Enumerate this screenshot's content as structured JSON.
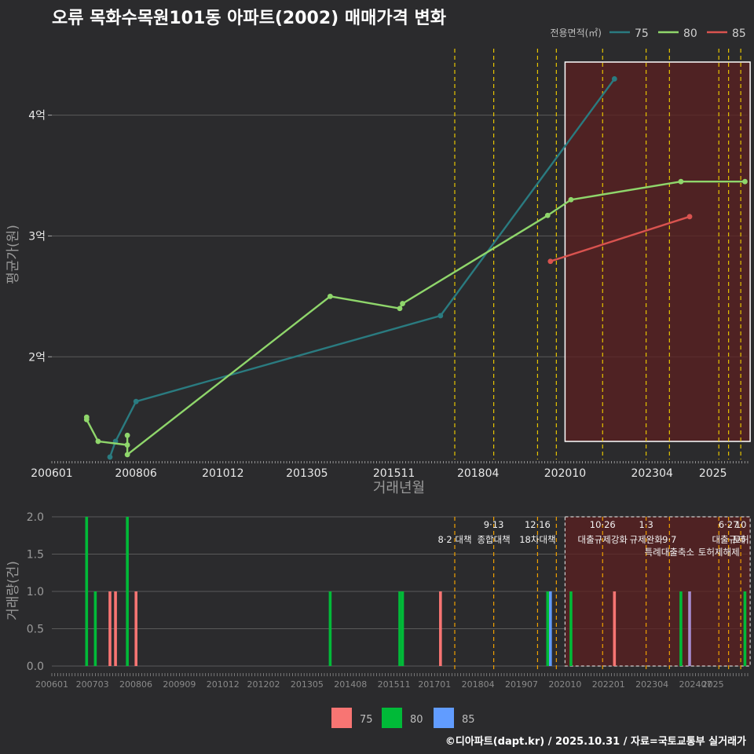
{
  "chart_data": {
    "title": "오류 목화수목원101동 아파트(2002) 매매가격 변화",
    "credit": "©디아파트(dapt.kr) / 2025.10.31 / 자료=국토교통부 실거래가",
    "legend_title": "전용면적(㎡)",
    "colors": {
      "75": "#2a7b80",
      "80": "#8fd66b",
      "85": "#d9534f",
      "bar75": "#f87573",
      "bar80": "#00ba38",
      "bar85": "#619cff",
      "bar_purple": "#a78bcf"
    },
    "top": {
      "type": "line",
      "xlabel": "거래년월",
      "ylabel": "평균가(원)",
      "ylim": [
        1.15,
        4.55
      ],
      "yticks": [
        {
          "v": 2,
          "label": "2억"
        },
        {
          "v": 3,
          "label": "3억"
        },
        {
          "v": 4,
          "label": "4억"
        }
      ],
      "xticks": [
        "200601",
        "200806",
        "201012",
        "201305",
        "201511",
        "201804",
        "202010",
        "202304",
        "2025"
      ],
      "series": [
        {
          "name": "75",
          "points": [
            [
              2007.67,
              1.17
            ],
            [
              2007.83,
              1.3
            ],
            [
              2008.42,
              1.63
            ],
            [
              2017.17,
              2.34
            ],
            [
              2022.17,
              4.3
            ]
          ]
        },
        {
          "name": "80",
          "points": [
            [
              2007.0,
              1.5
            ],
            [
              2007.0,
              1.48
            ],
            [
              2007.33,
              1.3
            ],
            [
              2008.17,
              1.27
            ],
            [
              2008.17,
              1.35
            ],
            [
              2008.17,
              1.19
            ],
            [
              2014.0,
              2.5
            ],
            [
              2016.0,
              2.4
            ],
            [
              2016.08,
              2.44
            ],
            [
              2020.25,
              3.17
            ],
            [
              2020.92,
              3.3
            ],
            [
              2024.08,
              3.45
            ],
            [
              2025.92,
              3.45
            ]
          ]
        },
        {
          "name": "85",
          "points": [
            [
              2020.33,
              2.79
            ],
            [
              2024.33,
              3.16
            ]
          ]
        }
      ]
    },
    "bottom": {
      "type": "bar",
      "ylabel": "거래량(건)",
      "ylim": [
        0,
        2
      ],
      "yticks": [
        "0.0",
        "0.5",
        "1.0",
        "1.5",
        "2.0"
      ],
      "xticks": [
        "200601",
        "200703",
        "200806",
        "200909",
        "201012",
        "201202",
        "201305",
        "201408",
        "201511",
        "201701",
        "201804",
        "201907",
        "202010",
        "202201",
        "202304",
        "202407",
        "2025"
      ],
      "bars": [
        {
          "t": 2007.0,
          "v": 2,
          "s": "bar80"
        },
        {
          "t": 2007.25,
          "v": 1,
          "s": "bar80"
        },
        {
          "t": 2007.67,
          "v": 1,
          "s": "bar75"
        },
        {
          "t": 2007.83,
          "v": 1,
          "s": "bar75"
        },
        {
          "t": 2008.17,
          "v": 2,
          "s": "bar80"
        },
        {
          "t": 2008.42,
          "v": 1,
          "s": "bar75"
        },
        {
          "t": 2014.0,
          "v": 1,
          "s": "bar80"
        },
        {
          "t": 2016.0,
          "v": 1,
          "s": "bar80"
        },
        {
          "t": 2016.08,
          "v": 1,
          "s": "bar80"
        },
        {
          "t": 2017.17,
          "v": 1,
          "s": "bar75"
        },
        {
          "t": 2020.25,
          "v": 1,
          "s": "bar80"
        },
        {
          "t": 2020.33,
          "v": 1,
          "s": "bar85"
        },
        {
          "t": 2020.92,
          "v": 1,
          "s": "bar80"
        },
        {
          "t": 2022.17,
          "v": 1,
          "s": "bar75"
        },
        {
          "t": 2024.08,
          "v": 1,
          "s": "bar80"
        },
        {
          "t": 2024.33,
          "v": 1,
          "s": "bar_purple"
        },
        {
          "t": 2025.92,
          "v": 1,
          "s": "bar80"
        }
      ],
      "legend": [
        "75",
        "80",
        "85"
      ]
    },
    "policy_lines": [
      2017.58,
      2018.7,
      2019.96,
      2020.5,
      2021.83,
      2023.08,
      2023.75,
      2025.17,
      2025.45,
      2025.8
    ],
    "highlight_range": [
      2020.75,
      2025.92
    ],
    "annotations": [
      {
        "t": 2017.58,
        "row": 2,
        "text": "8·2 대책"
      },
      {
        "t": 2018.7,
        "row": 1,
        "text": "9·13"
      },
      {
        "t": 2018.7,
        "row": 2,
        "text": "종합대책"
      },
      {
        "t": 2019.96,
        "row": 1,
        "text": "12·16"
      },
      {
        "t": 2019.96,
        "row": 2,
        "text": "18차대책"
      },
      {
        "t": 2021.83,
        "row": 1,
        "text": "10·26"
      },
      {
        "t": 2021.83,
        "row": 2,
        "text": "대출규제강화"
      },
      {
        "t": 2023.08,
        "row": 1,
        "text": "1·3"
      },
      {
        "t": 2023.08,
        "row": 2,
        "text": "규제완화"
      },
      {
        "t": 2023.75,
        "row": 2,
        "text": "9·7"
      },
      {
        "t": 2023.75,
        "row": 3,
        "text": "특례대출축소"
      },
      {
        "t": 2025.17,
        "row": 3,
        "text": "토허제해제"
      },
      {
        "t": 2025.45,
        "row": 1,
        "text": "6·27"
      },
      {
        "t": 2025.45,
        "row": 2,
        "text": "대출규제"
      },
      {
        "t": 2025.8,
        "row": 1,
        "text": "10"
      },
      {
        "t": 2025.8,
        "row": 2,
        "text": "토허"
      }
    ]
  }
}
